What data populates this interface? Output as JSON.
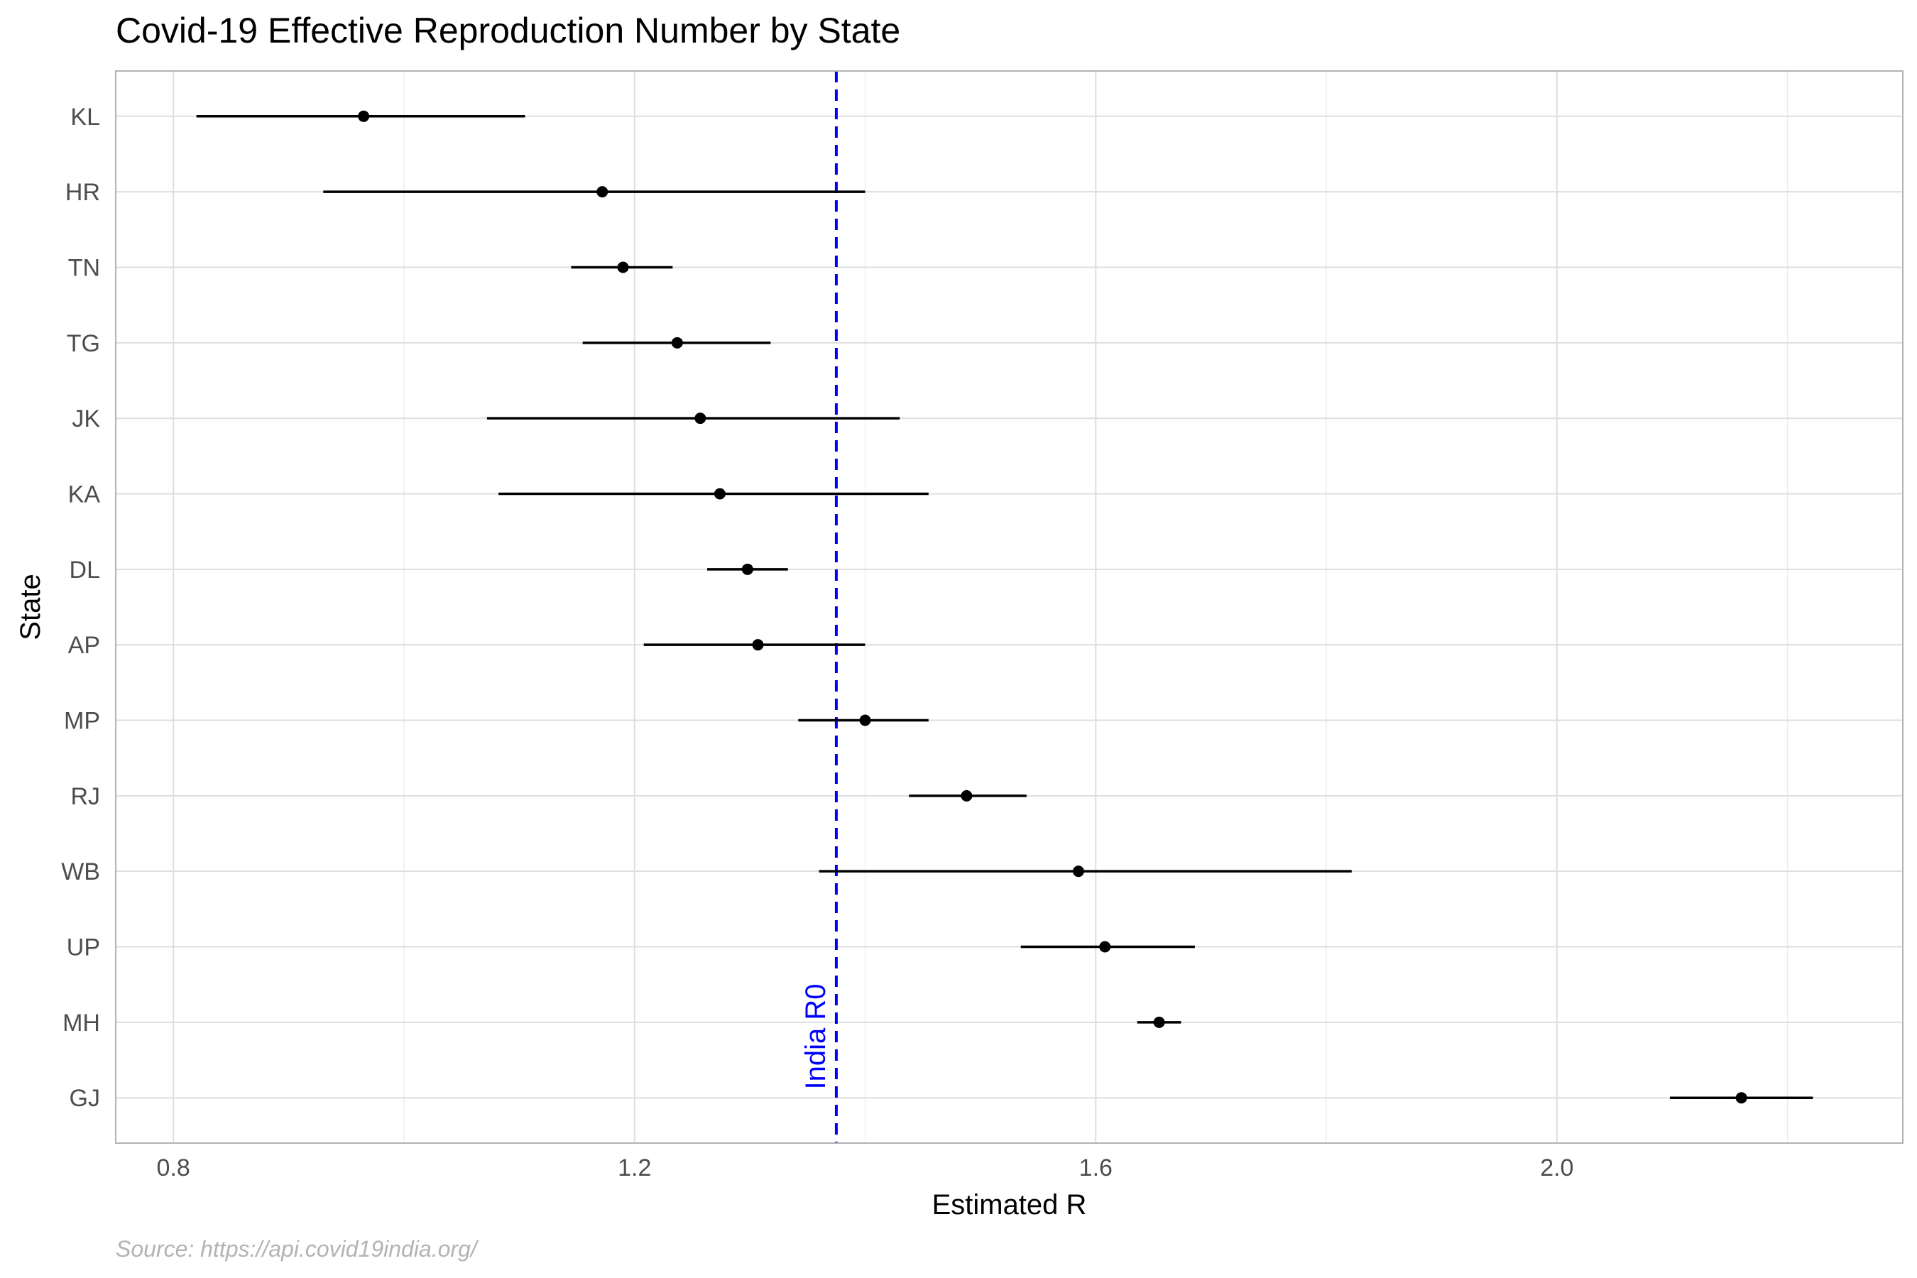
{
  "chart_data": {
    "type": "pointrange",
    "title": "Covid-19 Effective Reproduction Number by State",
    "xlabel": "Estimated R",
    "ylabel": "State",
    "caption": "Source: https://api.covid19india.org/",
    "xlim": [
      0.75,
      2.3
    ],
    "xticks": [
      {
        "value": 0.8,
        "label": "0.8"
      },
      {
        "value": 1.2,
        "label": "1.2"
      },
      {
        "value": 1.6,
        "label": "1.6"
      },
      {
        "value": 2.0,
        "label": "2.0"
      }
    ],
    "grid": true,
    "states": [
      {
        "state": "KL",
        "r": 0.965,
        "lower": 0.82,
        "upper": 1.105
      },
      {
        "state": "HR",
        "r": 1.172,
        "lower": 0.93,
        "upper": 1.4
      },
      {
        "state": "TN",
        "r": 1.19,
        "lower": 1.145,
        "upper": 1.233
      },
      {
        "state": "TG",
        "r": 1.237,
        "lower": 1.155,
        "upper": 1.318
      },
      {
        "state": "JK",
        "r": 1.257,
        "lower": 1.072,
        "upper": 1.43
      },
      {
        "state": "KA",
        "r": 1.274,
        "lower": 1.082,
        "upper": 1.455
      },
      {
        "state": "DL",
        "r": 1.298,
        "lower": 1.263,
        "upper": 1.333
      },
      {
        "state": "AP",
        "r": 1.307,
        "lower": 1.208,
        "upper": 1.4
      },
      {
        "state": "MP",
        "r": 1.4,
        "lower": 1.342,
        "upper": 1.455
      },
      {
        "state": "RJ",
        "r": 1.488,
        "lower": 1.438,
        "upper": 1.54
      },
      {
        "state": "WB",
        "r": 1.585,
        "lower": 1.36,
        "upper": 1.822
      },
      {
        "state": "UP",
        "r": 1.608,
        "lower": 1.535,
        "upper": 1.686
      },
      {
        "state": "MH",
        "r": 1.655,
        "lower": 1.636,
        "upper": 1.674
      },
      {
        "state": "GJ",
        "r": 2.16,
        "lower": 2.098,
        "upper": 2.222
      }
    ],
    "reference_line": {
      "label": "India R0",
      "value": 1.375,
      "color": "#0000ff",
      "style": "dashed"
    }
  }
}
